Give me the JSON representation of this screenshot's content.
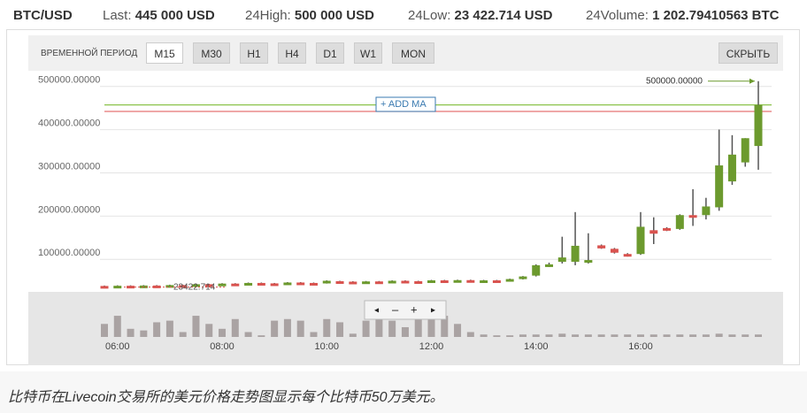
{
  "header": {
    "pair": "BTC/USD",
    "last_label": "Last:",
    "last": "445 000 USD",
    "high_label": "24High:",
    "high": "500 000 USD",
    "low_label": "24Low:",
    "low": "23 422.714 USD",
    "volume_label": "24Volume:",
    "volume": "1 202.79410563 BTC"
  },
  "toolbar": {
    "period_label": "ВРЕМЕННОЙ ПЕРИОД",
    "periods": [
      "M15",
      "M30",
      "H1",
      "H4",
      "D1",
      "W1",
      "MON"
    ],
    "selected": "M15",
    "hide": "СКРЫТЬ",
    "add_ma": "ADD MA"
  },
  "chart_data": {
    "type": "candlestick",
    "categories": [
      null,
      "06:00",
      null,
      null,
      null,
      null,
      null,
      null,
      null,
      "08:00",
      null,
      null,
      null,
      null,
      null,
      null,
      null,
      "10:00",
      null,
      null,
      null,
      null,
      null,
      null,
      null,
      "12:00",
      null,
      null,
      null,
      null,
      null,
      null,
      null,
      "14:00",
      null,
      null,
      null,
      null,
      null,
      null,
      null,
      "16:00",
      null,
      null,
      null,
      null,
      null,
      null,
      null,
      null,
      null
    ],
    "open": [
      26000,
      24500,
      26500,
      25500,
      27000,
      26000,
      28000,
      27500,
      30000,
      29000,
      31500,
      30500,
      33000,
      32000,
      31500,
      34000,
      33000,
      32500,
      37000,
      36000,
      35500,
      36500,
      35000,
      38000,
      37000,
      36500,
      39000,
      38000,
      39500,
      38500,
      39000,
      38000,
      42000,
      50000,
      72000,
      82000,
      82000,
      80000,
      120000,
      112000,
      100000,
      100000,
      155000,
      160000,
      158000,
      190000,
      190000,
      208000,
      268000,
      312000,
      350000
    ],
    "high": [
      27000,
      27500,
      27500,
      28000,
      28000,
      29000,
      29000,
      31000,
      31000,
      32500,
      32500,
      34000,
      34000,
      33000,
      35000,
      35000,
      34000,
      39000,
      38000,
      37000,
      37500,
      37500,
      39000,
      39000,
      38000,
      40000,
      40000,
      40500,
      40500,
      40000,
      40000,
      43000,
      49000,
      76000,
      80000,
      140000,
      197000,
      148000,
      122000,
      114000,
      102000,
      197000,
      185000,
      162000,
      192000,
      250000,
      230000,
      388000,
      375000,
      368000,
      500000
    ],
    "low": [
      23000,
      23500,
      24500,
      24500,
      25000,
      25000,
      26500,
      26500,
      28000,
      28000,
      29000,
      29500,
      31000,
      30000,
      30500,
      32000,
      31500,
      31500,
      35000,
      34500,
      34500,
      34000,
      34000,
      36000,
      35500,
      35500,
      37000,
      37000,
      37500,
      37500,
      37000,
      37000,
      41000,
      48000,
      70000,
      78000,
      74000,
      78000,
      112000,
      101000,
      94000,
      98000,
      123000,
      153000,
      156000,
      165000,
      180000,
      200000,
      260000,
      302000,
      295000
    ],
    "close": [
      24000,
      26500,
      25500,
      27000,
      26000,
      28000,
      27500,
      30000,
      29000,
      31500,
      30000,
      33000,
      32000,
      31000,
      34000,
      33000,
      32500,
      38000,
      36000,
      35500,
      36500,
      35000,
      38000,
      37000,
      36500,
      39000,
      38000,
      39500,
      38500,
      39000,
      38000,
      42000,
      48000,
      74000,
      76000,
      92000,
      119000,
      86000,
      113000,
      103000,
      96000,
      163000,
      147000,
      155000,
      190000,
      185000,
      210000,
      305000,
      330000,
      368000,
      445000
    ],
    "volume": [
      16,
      26,
      10,
      8,
      18,
      20,
      6,
      26,
      16,
      10,
      22,
      6,
      2,
      20,
      22,
      20,
      6,
      22,
      18,
      4,
      20,
      22,
      20,
      12,
      34,
      22,
      26,
      16,
      6,
      3,
      2,
      2,
      3,
      3,
      3,
      4,
      3,
      3,
      3,
      3,
      3,
      3,
      3,
      3,
      3,
      3,
      3,
      4,
      3,
      3,
      3
    ],
    "volume_lim": [
      0,
      50
    ],
    "up_color": "#6c9a2e",
    "down_color": "#d9534f",
    "volume_color": "#aaa3a3",
    "ylim": [
      -6000,
      520000
    ],
    "yticks": [
      {
        "value": 100000,
        "label": "100000.00000"
      },
      {
        "value": 200000,
        "label": "200000.00000"
      },
      {
        "value": 300000,
        "label": "300000.00000"
      },
      {
        "value": 400000,
        "label": "400000.00000"
      },
      {
        "value": 500000,
        "label": "500000.00000"
      }
    ],
    "grid": true,
    "lines": [
      {
        "value": 445000,
        "color": "#8bc34a"
      },
      {
        "value": 430000,
        "color": "#e57373"
      }
    ],
    "max_value": 500000,
    "max_label": "500000.00000",
    "min_value": 23422.714,
    "min_label": "23422.714"
  },
  "caption": "比特币在Livecoin交易所的美元价格走势图显示每个比特币50万美元。"
}
